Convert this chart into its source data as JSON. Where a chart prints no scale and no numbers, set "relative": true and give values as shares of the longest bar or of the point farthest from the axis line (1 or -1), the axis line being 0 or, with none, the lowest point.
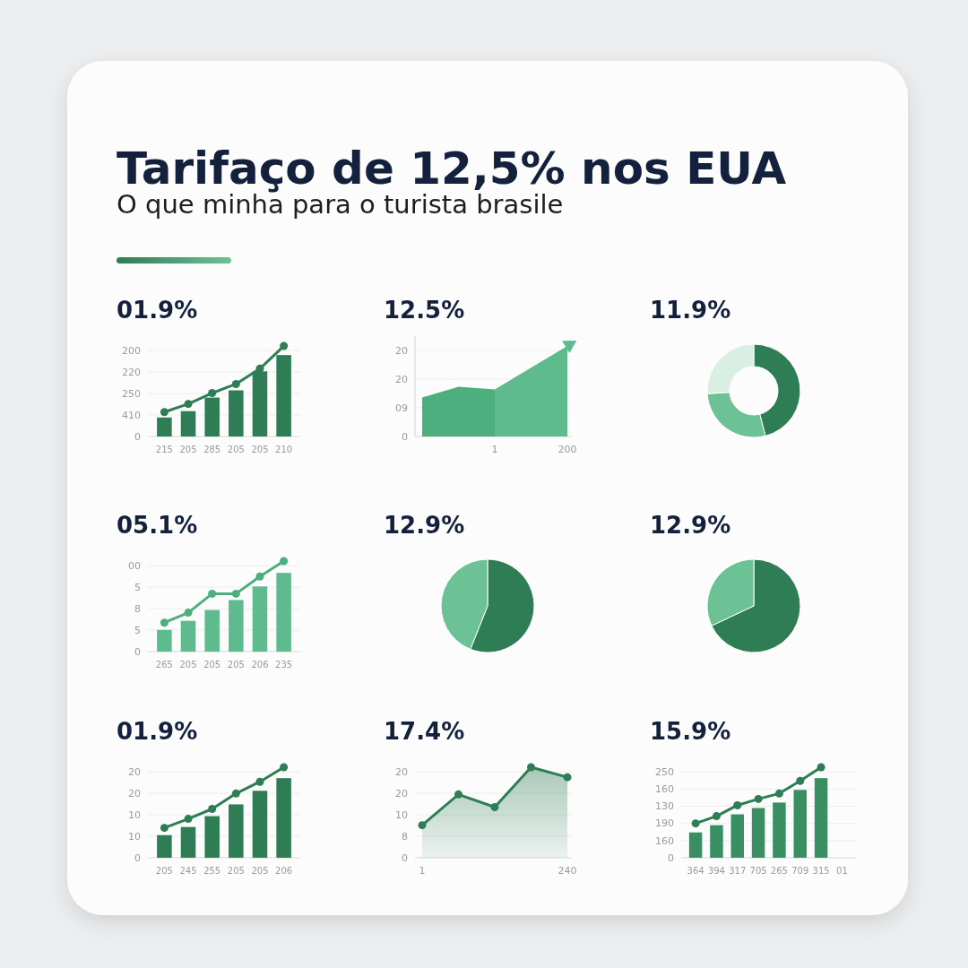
{
  "chart_data": [
    {
      "type": "other",
      "title": "Tarifaço de 12,5% nos EUA",
      "subtitle": "O que minha para o turista brasile"
    },
    {
      "type": "bar",
      "title": "01.9%",
      "categories": [
        "215",
        "205",
        "285",
        "205",
        "205",
        "210"
      ],
      "relative": true,
      "annotations": [
        "0",
        "410",
        "250",
        "220",
        "200"
      ],
      "grid": "y",
      "marker": "circle",
      "series": [
        {
          "type": "bar",
          "color": "#2e7d55",
          "values": [
            0.21,
            0.28,
            0.43,
            0.51,
            0.72,
            0.9
          ]
        },
        {
          "type": "line",
          "color": "#2e7d55",
          "values": [
            0.27,
            0.36,
            0.48,
            0.58,
            0.75,
            1
          ]
        }
      ]
    },
    {
      "type": "area",
      "title": "12.5%",
      "categories": [
        null,
        null,
        "1",
        null,
        "200"
      ],
      "relative": true,
      "annotations": [
        "0",
        "09",
        "20",
        "20"
      ],
      "grid": "y",
      "series": [
        {
          "color": "#4caf7d",
          "values": [
            0.43,
            0.55,
            0.52,
            null,
            null
          ]
        },
        {
          "color": "#5dbb8e",
          "values": [
            null,
            null,
            0.52,
            0.76,
            1
          ]
        }
      ]
    },
    {
      "type": "donut",
      "title": "11.9%",
      "categories": [
        null,
        null,
        null
      ],
      "values": [
        46,
        28,
        26
      ],
      "colors": [
        "#2e7d55",
        "#6cc295",
        "#d9efe3"
      ]
    },
    {
      "type": "bar",
      "title": "05.1%",
      "categories": [
        "265",
        "205",
        "205",
        "205",
        "206",
        "235"
      ],
      "relative": true,
      "annotations": [
        "0",
        "5",
        "8",
        "5",
        "00"
      ],
      "grid": "y",
      "marker": "circle",
      "series": [
        {
          "type": "bar",
          "color": "#5dbb8e",
          "values": [
            0.24,
            0.34,
            0.46,
            0.57,
            0.72,
            0.87
          ]
        },
        {
          "type": "line",
          "color": "#4caf7d",
          "values": [
            0.32,
            0.43,
            0.64,
            0.64,
            0.83,
            1
          ]
        }
      ]
    },
    {
      "type": "pie",
      "title": "12.9%",
      "categories": [
        null,
        null
      ],
      "values": [
        56,
        44
      ],
      "colors": [
        "#2e7d55",
        "#6cc295"
      ]
    },
    {
      "type": "pie",
      "title": "12.9%",
      "categories": [
        null,
        null
      ],
      "values": [
        68,
        32
      ],
      "colors": [
        "#2e7d55",
        "#6cc295"
      ]
    },
    {
      "type": "bar",
      "title": "01.9%",
      "categories": [
        "205",
        "245",
        "255",
        "205",
        "205",
        "206"
      ],
      "relative": true,
      "annotations": [
        "0",
        "10",
        "10",
        "20",
        "20"
      ],
      "grid": "y",
      "marker": "circle",
      "series": [
        {
          "type": "bar",
          "color": "#2e7d55",
          "values": [
            0.25,
            0.34,
            0.46,
            0.59,
            0.74,
            0.88
          ]
        },
        {
          "type": "line",
          "color": "#2e7d55",
          "values": [
            0.33,
            0.43,
            0.54,
            0.71,
            0.84,
            1
          ]
        }
      ]
    },
    {
      "type": "area",
      "title": "17.4%",
      "categories": [
        "1",
        null,
        null,
        null,
        "240"
      ],
      "relative": true,
      "annotations": [
        "0",
        "8",
        "10",
        "20",
        "20"
      ],
      "grid": "y",
      "marker": "circle",
      "series": [
        {
          "color": "#2e7d55",
          "values": [
            0.36,
            0.7,
            0.56,
            1,
            0.89
          ]
        }
      ]
    },
    {
      "type": "bar",
      "title": "15.9%",
      "categories": [
        "364",
        "394",
        "317",
        "705",
        "265",
        "709",
        "315",
        "01"
      ],
      "relative": true,
      "annotations": [
        "0",
        "160",
        "190",
        "130",
        "160",
        "250"
      ],
      "grid": "y",
      "marker": "circle",
      "series": [
        {
          "type": "bar",
          "color": "#3a8f62",
          "values": [
            0.28,
            0.36,
            0.48,
            0.55,
            0.61,
            0.75,
            0.88,
            null
          ]
        },
        {
          "type": "line",
          "color": "#2e7d55",
          "values": [
            0.38,
            0.46,
            0.58,
            0.65,
            0.71,
            0.85,
            1,
            null
          ]
        }
      ]
    }
  ]
}
